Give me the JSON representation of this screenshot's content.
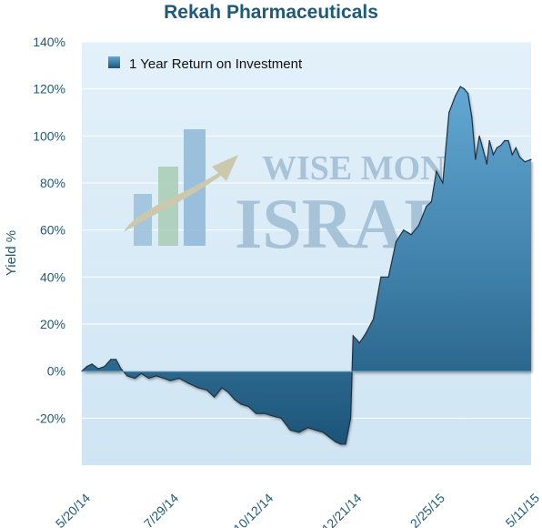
{
  "chart_data": {
    "type": "area",
    "title": "Rekah Pharmaceuticals",
    "ylabel": "Yield %",
    "xlabel": "",
    "ylim": [
      -40,
      140
    ],
    "yticks": [
      "-20%",
      "0%",
      "20%",
      "40%",
      "60%",
      "80%",
      "100%",
      "120%",
      "140%"
    ],
    "ytick_values": [
      -20,
      0,
      20,
      40,
      60,
      80,
      100,
      120,
      140
    ],
    "xticks": [
      "5/20/14",
      "7/29/14",
      "10/12/14",
      "12/21/14",
      "2/25/15",
      "5/11/15"
    ],
    "legend": {
      "position": "top-left",
      "label": "1 Year Return on Investment"
    },
    "grid": true,
    "watermark": {
      "line1": "WISE MONEY",
      "line2": "ISRAEL"
    },
    "colors": {
      "fill_top": "#62a8d3",
      "fill_bottom": "#1c5478",
      "edge": "#203040",
      "plot_bg": "#dcedf8",
      "text": "#1f5a78"
    },
    "series": [
      {
        "name": "1 Year Return on Investment",
        "x": [
          "5/20/14",
          "5/24/14",
          "5/28/14",
          "6/2/14",
          "6/7/14",
          "6/12/14",
          "6/16/14",
          "6/20/14",
          "6/25/14",
          "7/1/14",
          "7/6/14",
          "7/12/14",
          "7/18/14",
          "7/24/14",
          "7/29/14",
          "8/5/14",
          "8/12/14",
          "8/20/14",
          "8/27/14",
          "9/2/14",
          "9/8/14",
          "9/13/14",
          "9/18/14",
          "9/23/14",
          "9/29/14",
          "10/5/14",
          "10/12/14",
          "10/18/14",
          "10/25/14",
          "11/1/14",
          "11/8/14",
          "11/15/14",
          "11/21/14",
          "11/27/14",
          "12/2/14",
          "12/7/14",
          "12/11/14",
          "12/15/14",
          "12/19/14",
          "12/21/14",
          "12/26/14",
          "12/31/14",
          "1/6/15",
          "1/12/15",
          "1/18/15",
          "1/24/15",
          "1/30/15",
          "2/5/15",
          "2/11/15",
          "2/17/15",
          "2/21/15",
          "2/25/15",
          "3/2/15",
          "3/7/15",
          "3/12/15",
          "3/16/15",
          "3/19/15",
          "3/22/15",
          "3/25/15",
          "3/28/15",
          "3/31/15",
          "4/3/15",
          "4/6/15",
          "4/8/15",
          "4/11/15",
          "4/14/15",
          "4/17/15",
          "4/20/15",
          "4/23/15",
          "4/26/15",
          "4/29/15",
          "5/2/15",
          "5/6/15",
          "5/11/15"
        ],
        "values": [
          0,
          2,
          3,
          1,
          2,
          5,
          5,
          1,
          -2,
          -3,
          -1,
          -3,
          -2,
          -3,
          -4,
          -3,
          -5,
          -7,
          -8,
          -11,
          -7,
          -9,
          -12,
          -14,
          -15,
          -18,
          -18,
          -19,
          -20,
          -25,
          -26,
          -24,
          -25,
          -26,
          -28,
          -30,
          -31,
          -31,
          -20,
          15,
          12,
          16,
          22,
          40,
          40,
          55,
          60,
          58,
          62,
          70,
          72,
          85,
          80,
          110,
          117,
          121,
          120,
          118,
          108,
          90,
          100,
          94,
          88,
          98,
          92,
          95,
          96,
          98,
          98,
          92,
          95,
          91,
          89,
          90
        ]
      }
    ]
  }
}
